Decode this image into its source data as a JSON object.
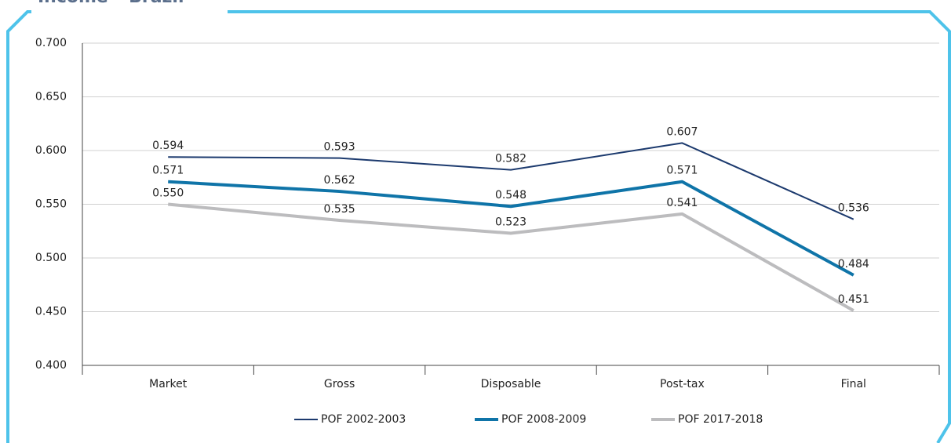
{
  "chart_data": {
    "type": "line",
    "title": "Income – Brazil",
    "categories": [
      "Market",
      "Gross",
      "Disposable",
      "Post-tax",
      "Final"
    ],
    "series": [
      {
        "name": "POF 2002-2003",
        "color": "#1c3a6e",
        "width": 2,
        "values": [
          0.594,
          0.593,
          0.582,
          0.607,
          0.536
        ],
        "value_labels": [
          "0.594",
          "0.593",
          "0.582",
          "0.607",
          "0.536"
        ]
      },
      {
        "name": "POF 2008-2009",
        "color": "#0f74a8",
        "width": 4,
        "values": [
          0.571,
          0.562,
          0.548,
          0.571,
          0.484
        ],
        "value_labels": [
          "0.571",
          "0.562",
          "0.548",
          "0.571",
          "0.484"
        ]
      },
      {
        "name": "POF 2017-2018",
        "color": "#bcbcbe",
        "width": 4,
        "values": [
          0.55,
          0.535,
          0.523,
          0.541,
          0.451
        ],
        "value_labels": [
          "0.550",
          "0.535",
          "0.523",
          "0.541",
          "0.451"
        ]
      }
    ],
    "ylim": [
      0.4,
      0.7
    ],
    "yticks": [
      {
        "value": 0.4,
        "label": "0.400"
      },
      {
        "value": 0.45,
        "label": "0.450"
      },
      {
        "value": 0.5,
        "label": "0.500"
      },
      {
        "value": 0.55,
        "label": "0.550"
      },
      {
        "value": 0.6,
        "label": "0.600"
      },
      {
        "value": 0.65,
        "label": "0.650"
      },
      {
        "value": 0.7,
        "label": "0.700"
      }
    ],
    "grid": true
  }
}
